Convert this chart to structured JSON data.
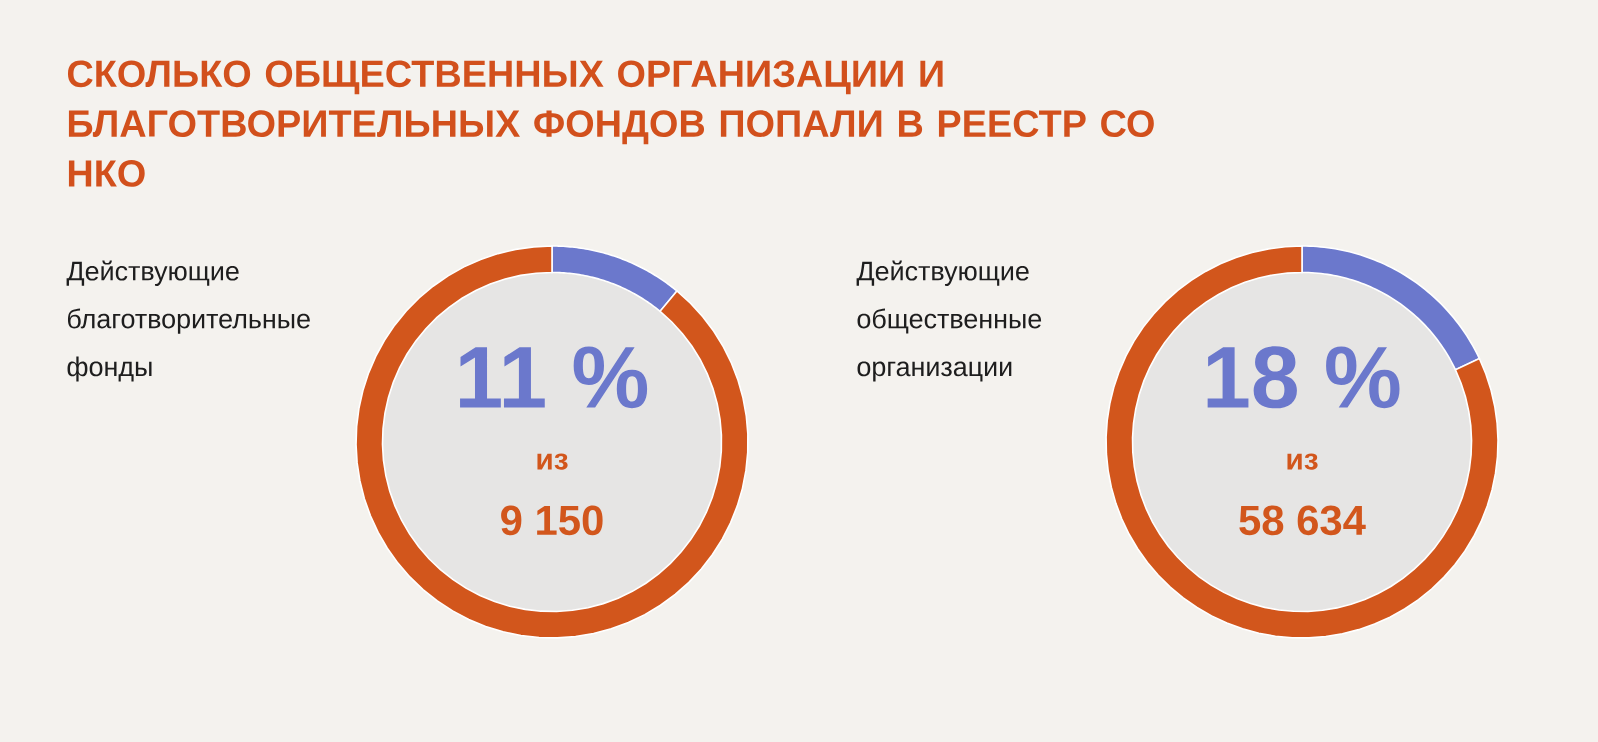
{
  "chart_data": [
    {
      "type": "donut",
      "title": "СКОЛЬКО ОБЩЕСТВЕННЫХ ОРГАНИЗАЦИИ И БЛАГОТВОРИТЕЛЬНЫХ ФОНДОВ ПОПАЛИ В РЕЕСТР СО НКО",
      "subtitle": "Действующие благотворительные фонды",
      "categories": [
        null,
        null
      ],
      "values": [
        11,
        89
      ],
      "colors": [
        "#6b78cc",
        "#d2561c"
      ],
      "value_labels": [
        "11 %",
        null
      ],
      "annotations": [
        "из",
        "9 150"
      ]
    },
    {
      "type": "donut",
      "subtitle": "Действующие общественные организации",
      "categories": [
        null,
        null
      ],
      "values": [
        18,
        82
      ],
      "colors": [
        "#6b78cc",
        "#d2561c"
      ],
      "value_labels": [
        "18 %",
        null
      ],
      "annotations": [
        "из",
        "58 634"
      ]
    }
  ]
}
